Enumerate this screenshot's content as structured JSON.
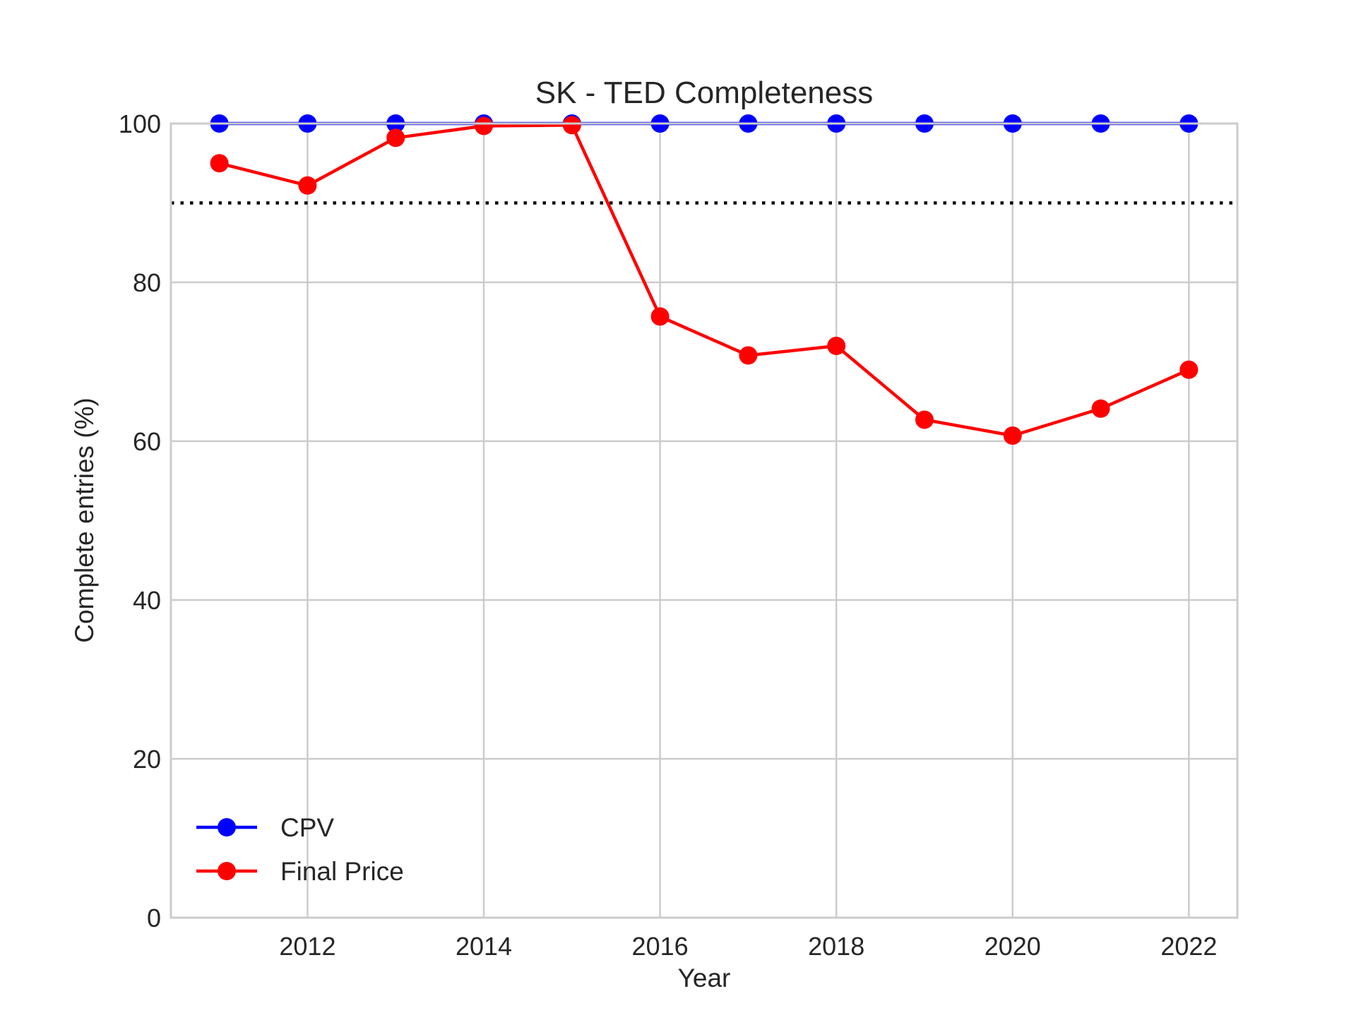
{
  "chart_data": {
    "type": "line",
    "title": "SK - TED Completeness",
    "xlabel": "Year",
    "ylabel": "Complete entries (%)",
    "xlim": [
      2010.45,
      2022.55
    ],
    "ylim": [
      0,
      100
    ],
    "x_ticks": [
      2012,
      2014,
      2016,
      2018,
      2020,
      2022
    ],
    "x_tick_labels": [
      "2012",
      "2014",
      "2016",
      "2018",
      "2020",
      "2022"
    ],
    "y_ticks": [
      0,
      20,
      40,
      60,
      80,
      100
    ],
    "y_tick_labels": [
      "0",
      "20",
      "40",
      "60",
      "80",
      "100"
    ],
    "grid": true,
    "legend_position": "lower-left",
    "x": [
      2011,
      2012,
      2013,
      2014,
      2015,
      2016,
      2017,
      2018,
      2019,
      2020,
      2021,
      2022
    ],
    "series": [
      {
        "name": "CPV",
        "color": "#0000ff",
        "marker": "circle",
        "values": [
          100,
          100,
          100,
          100,
          100,
          100,
          100,
          100,
          100,
          100,
          100,
          100
        ]
      },
      {
        "name": "Final Price",
        "color": "#ff0000",
        "marker": "circle",
        "values": [
          95.0,
          92.2,
          98.2,
          99.7,
          99.8,
          75.7,
          70.8,
          72.0,
          62.7,
          60.7,
          64.1,
          69.0
        ]
      }
    ],
    "reference_lines": [
      {
        "orientation": "horizontal",
        "value": 90,
        "style": "dotted",
        "color": "#000000"
      }
    ]
  }
}
